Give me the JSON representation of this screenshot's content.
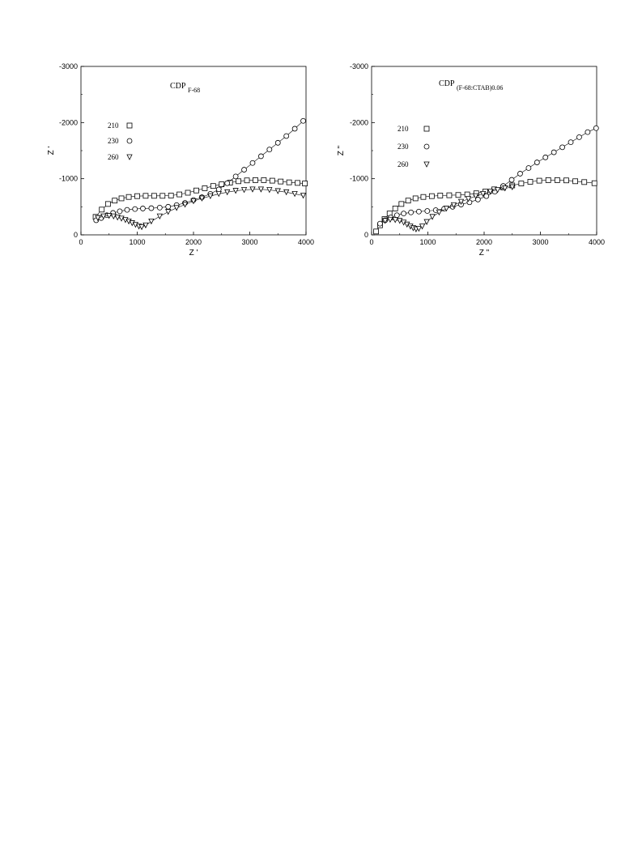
{
  "chart_data": [
    {
      "type": "scatter",
      "title": "CDP",
      "title_subscript": "F-68",
      "xlabel": "Z '",
      "ylabel": "Z '",
      "xlim": [
        0,
        4000
      ],
      "ylim": [
        0,
        -3000
      ],
      "x_ticks": [
        "0",
        "1000",
        "2000",
        "3000",
        "4000"
      ],
      "y_ticks": [
        "0",
        "-1000",
        "-2000",
        "-3000"
      ],
      "x_tick_values": [
        0,
        1000,
        2000,
        3000,
        4000
      ],
      "y_tick_values": [
        0,
        -1000,
        -2000,
        -3000
      ],
      "grid": false,
      "legend_position": "left",
      "series": [
        {
          "name": "210",
          "marker": "square",
          "x": [
            260,
            370,
            480,
            600,
            720,
            850,
            1000,
            1150,
            1300,
            1450,
            1600,
            1750,
            1900,
            2050,
            2200,
            2350,
            2500,
            2650,
            2800,
            2950,
            3100,
            3250,
            3400,
            3550,
            3700,
            3850,
            3980
          ],
          "y": [
            -320,
            -450,
            -550,
            -610,
            -650,
            -675,
            -690,
            -695,
            -695,
            -695,
            -700,
            -720,
            -750,
            -790,
            -830,
            -870,
            -900,
            -930,
            -955,
            -970,
            -975,
            -975,
            -965,
            -950,
            -935,
            -925,
            -915
          ]
        },
        {
          "name": "230",
          "marker": "circle",
          "x": [
            270,
            360,
            460,
            570,
            690,
            820,
            960,
            1100,
            1250,
            1400,
            1550,
            1700,
            1850,
            2000,
            2150,
            2300,
            2450,
            2600,
            2750,
            2900,
            3050,
            3200,
            3350,
            3500,
            3650,
            3800,
            3950
          ],
          "y": [
            -260,
            -300,
            -350,
            -390,
            -420,
            -445,
            -460,
            -470,
            -475,
            -485,
            -500,
            -530,
            -570,
            -620,
            -670,
            -730,
            -810,
            -920,
            -1040,
            -1160,
            -1280,
            -1400,
            -1520,
            -1640,
            -1760,
            -1890,
            -2030
          ]
        },
        {
          "name": "260",
          "marker": "triangle-down",
          "x": [
            300,
            400,
            500,
            580,
            650,
            720,
            790,
            850,
            910,
            970,
            1030,
            1080,
            1150,
            1250,
            1400,
            1550,
            1700,
            1850,
            2000,
            2150,
            2300,
            2450,
            2600,
            2750,
            2900,
            3050,
            3200,
            3350,
            3500,
            3650,
            3800,
            3950
          ],
          "y": [
            -300,
            -330,
            -340,
            -330,
            -310,
            -290,
            -265,
            -240,
            -210,
            -180,
            -150,
            -140,
            -170,
            -240,
            -330,
            -410,
            -480,
            -540,
            -600,
            -650,
            -690,
            -730,
            -760,
            -785,
            -800,
            -810,
            -810,
            -800,
            -780,
            -760,
            -730,
            -700
          ]
        }
      ]
    },
    {
      "type": "scatter",
      "title": "CDP",
      "title_subscript": "(F-68:CTAB)0.06",
      "xlabel": "Z \"",
      "ylabel": "Z \"",
      "xlim": [
        0,
        4000
      ],
      "ylim": [
        0,
        -3000
      ],
      "x_ticks": [
        "0",
        "1000",
        "2000",
        "3000",
        "4000"
      ],
      "y_ticks": [
        "0",
        "-1000",
        "-2000",
        "-3000"
      ],
      "x_tick_values": [
        0,
        1000,
        2000,
        3000,
        4000
      ],
      "y_tick_values": [
        0,
        -1000,
        -2000,
        -3000
      ],
      "grid": false,
      "legend_position": "left",
      "series": [
        {
          "name": "210",
          "marker": "square",
          "x": [
            80,
            150,
            230,
            320,
            420,
            530,
            650,
            780,
            920,
            1070,
            1220,
            1380,
            1540,
            1700,
            1860,
            2020,
            2180,
            2340,
            2500,
            2660,
            2820,
            2980,
            3140,
            3300,
            3460,
            3620,
            3780,
            3960
          ],
          "y": [
            -60,
            -170,
            -280,
            -380,
            -470,
            -550,
            -610,
            -650,
            -675,
            -690,
            -700,
            -705,
            -710,
            -720,
            -740,
            -770,
            -810,
            -845,
            -880,
            -915,
            -945,
            -965,
            -975,
            -975,
            -970,
            -955,
            -940,
            -920
          ]
        },
        {
          "name": "230",
          "marker": "circle",
          "x": [
            150,
            240,
            340,
            450,
            570,
            700,
            840,
            990,
            1140,
            1290,
            1440,
            1590,
            1740,
            1890,
            2040,
            2190,
            2340,
            2490,
            2640,
            2790,
            2940,
            3090,
            3240,
            3390,
            3540,
            3690,
            3840,
            3990
          ],
          "y": [
            -200,
            -260,
            -310,
            -350,
            -380,
            -400,
            -415,
            -425,
            -440,
            -465,
            -500,
            -540,
            -580,
            -630,
            -690,
            -770,
            -870,
            -980,
            -1090,
            -1190,
            -1290,
            -1380,
            -1470,
            -1560,
            -1650,
            -1740,
            -1830,
            -1900
          ]
        },
        {
          "name": "260",
          "marker": "triangle-down",
          "x": [
            240,
            330,
            420,
            500,
            570,
            630,
            690,
            740,
            790,
            840,
            900,
            980,
            1080,
            1200,
            1330,
            1460,
            1590,
            1720,
            1850,
            1980,
            2110,
            2240,
            2370,
            2500
          ],
          "y": [
            -250,
            -270,
            -265,
            -250,
            -220,
            -185,
            -150,
            -120,
            -100,
            -110,
            -150,
            -230,
            -320,
            -400,
            -470,
            -530,
            -590,
            -640,
            -690,
            -730,
            -770,
            -800,
            -830,
            -850
          ]
        }
      ]
    }
  ]
}
